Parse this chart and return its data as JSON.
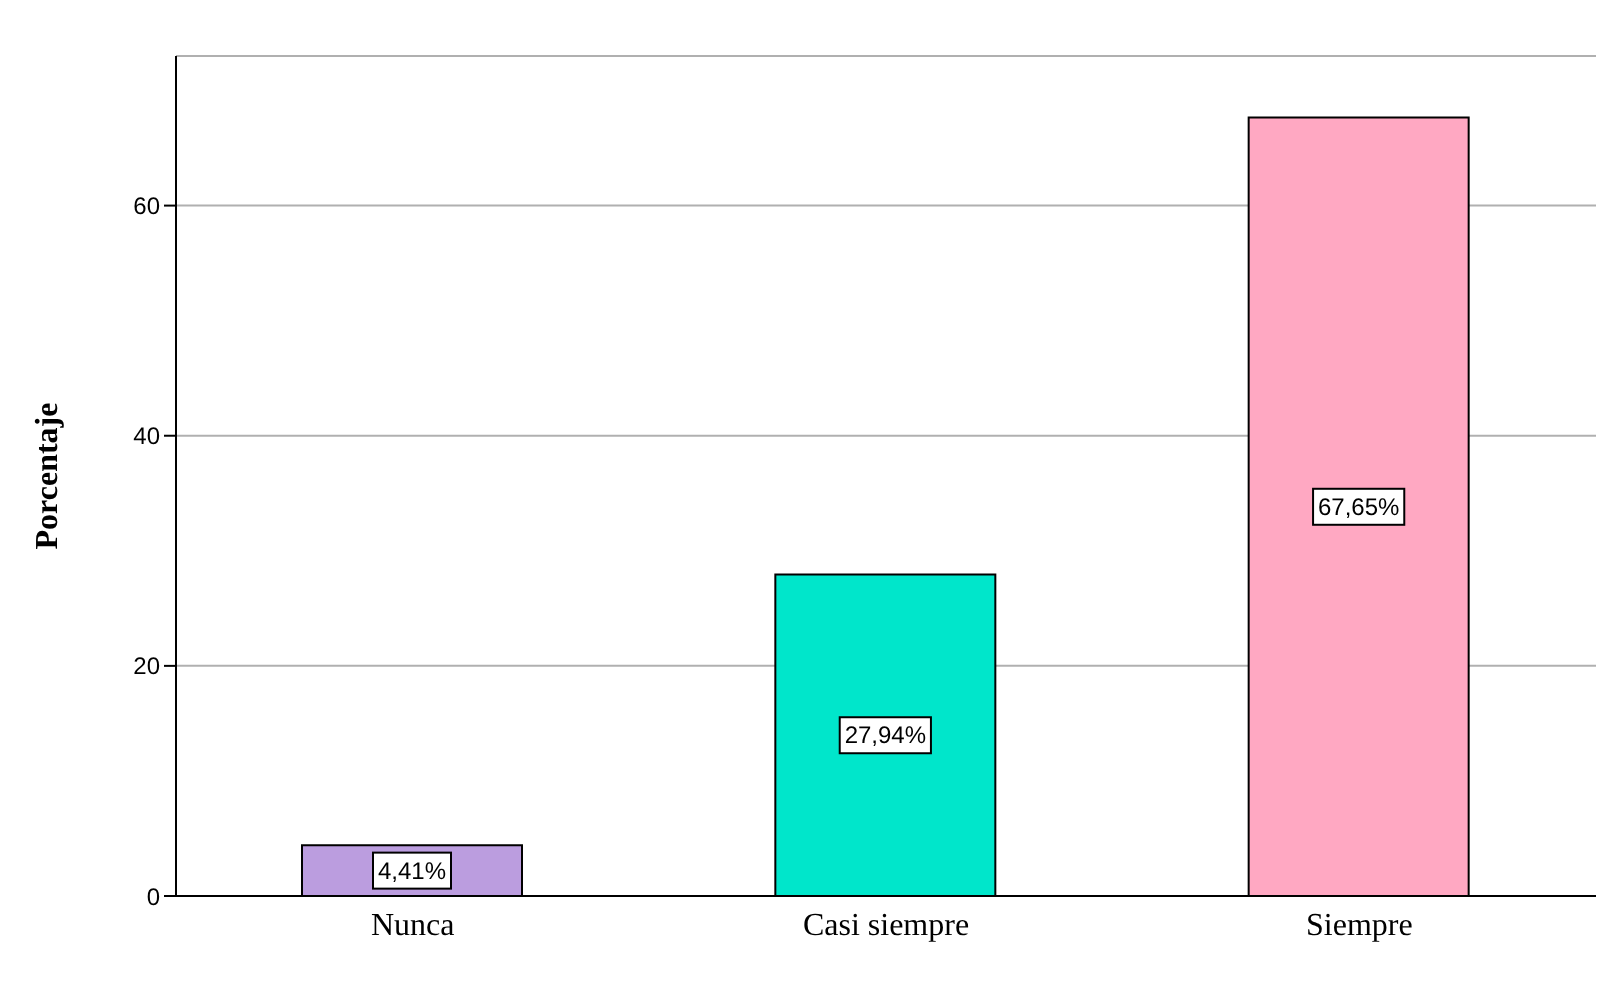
{
  "chart_data": {
    "type": "bar",
    "ylabel": "Porcentaje",
    "categories": [
      "Nunca",
      "Casi siempre",
      "Siempre"
    ],
    "values": [
      4.41,
      27.94,
      67.65
    ],
    "colors": [
      "#bb9ddf",
      "#00e6cb",
      "#ffa8c2"
    ],
    "value_labels": [
      "4,41%",
      "27,94%",
      "67,65%"
    ],
    "ylim": [
      0,
      73
    ],
    "yticks": [
      0,
      20,
      40,
      60
    ],
    "grid": "y"
  }
}
